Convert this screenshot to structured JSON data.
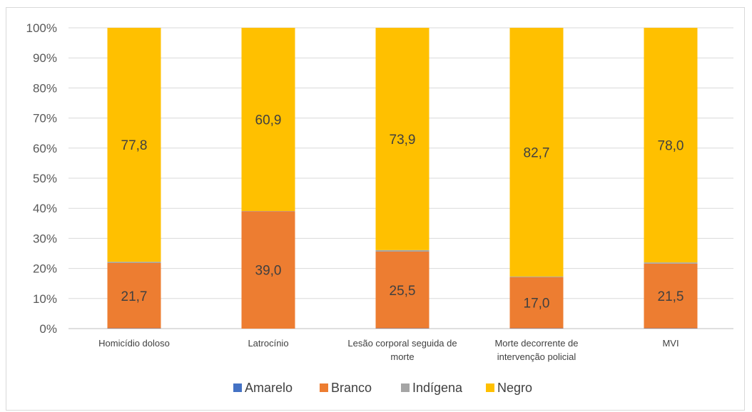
{
  "chart_data": {
    "type": "bar",
    "stacked": true,
    "percent_stacked": true,
    "categories": [
      [
        "Homicídio doloso"
      ],
      [
        "Latrocínio"
      ],
      [
        "Lesão corporal seguida de",
        "morte"
      ],
      [
        "Morte decorrente de",
        "intervenção policial"
      ],
      [
        "MVI"
      ]
    ],
    "series": [
      {
        "name": "Amarelo",
        "color": "#4472c4",
        "values": [
          0.1,
          0.0,
          0.1,
          0.1,
          0.1
        ]
      },
      {
        "name": "Branco",
        "color": "#ed7d31",
        "values": [
          21.7,
          39.0,
          25.5,
          17.0,
          21.5
        ]
      },
      {
        "name": "Indígena",
        "color": "#a5a5a5",
        "values": [
          0.4,
          0.1,
          0.5,
          0.2,
          0.4
        ]
      },
      {
        "name": "Negro",
        "color": "#ffc000",
        "values": [
          77.8,
          60.9,
          73.9,
          82.7,
          78.0
        ]
      }
    ],
    "data_labels": {
      "Branco": [
        "21,7",
        "39,0",
        "25,5",
        "17,0",
        "21,5"
      ],
      "Negro": [
        "77,8",
        "60,9",
        "73,9",
        "82,7",
        "78,0"
      ]
    },
    "y_ticks": [
      "0%",
      "10%",
      "20%",
      "30%",
      "40%",
      "50%",
      "60%",
      "70%",
      "80%",
      "90%",
      "100%"
    ],
    "ylim": [
      0,
      100
    ],
    "grid": true,
    "legend_position": "bottom"
  }
}
